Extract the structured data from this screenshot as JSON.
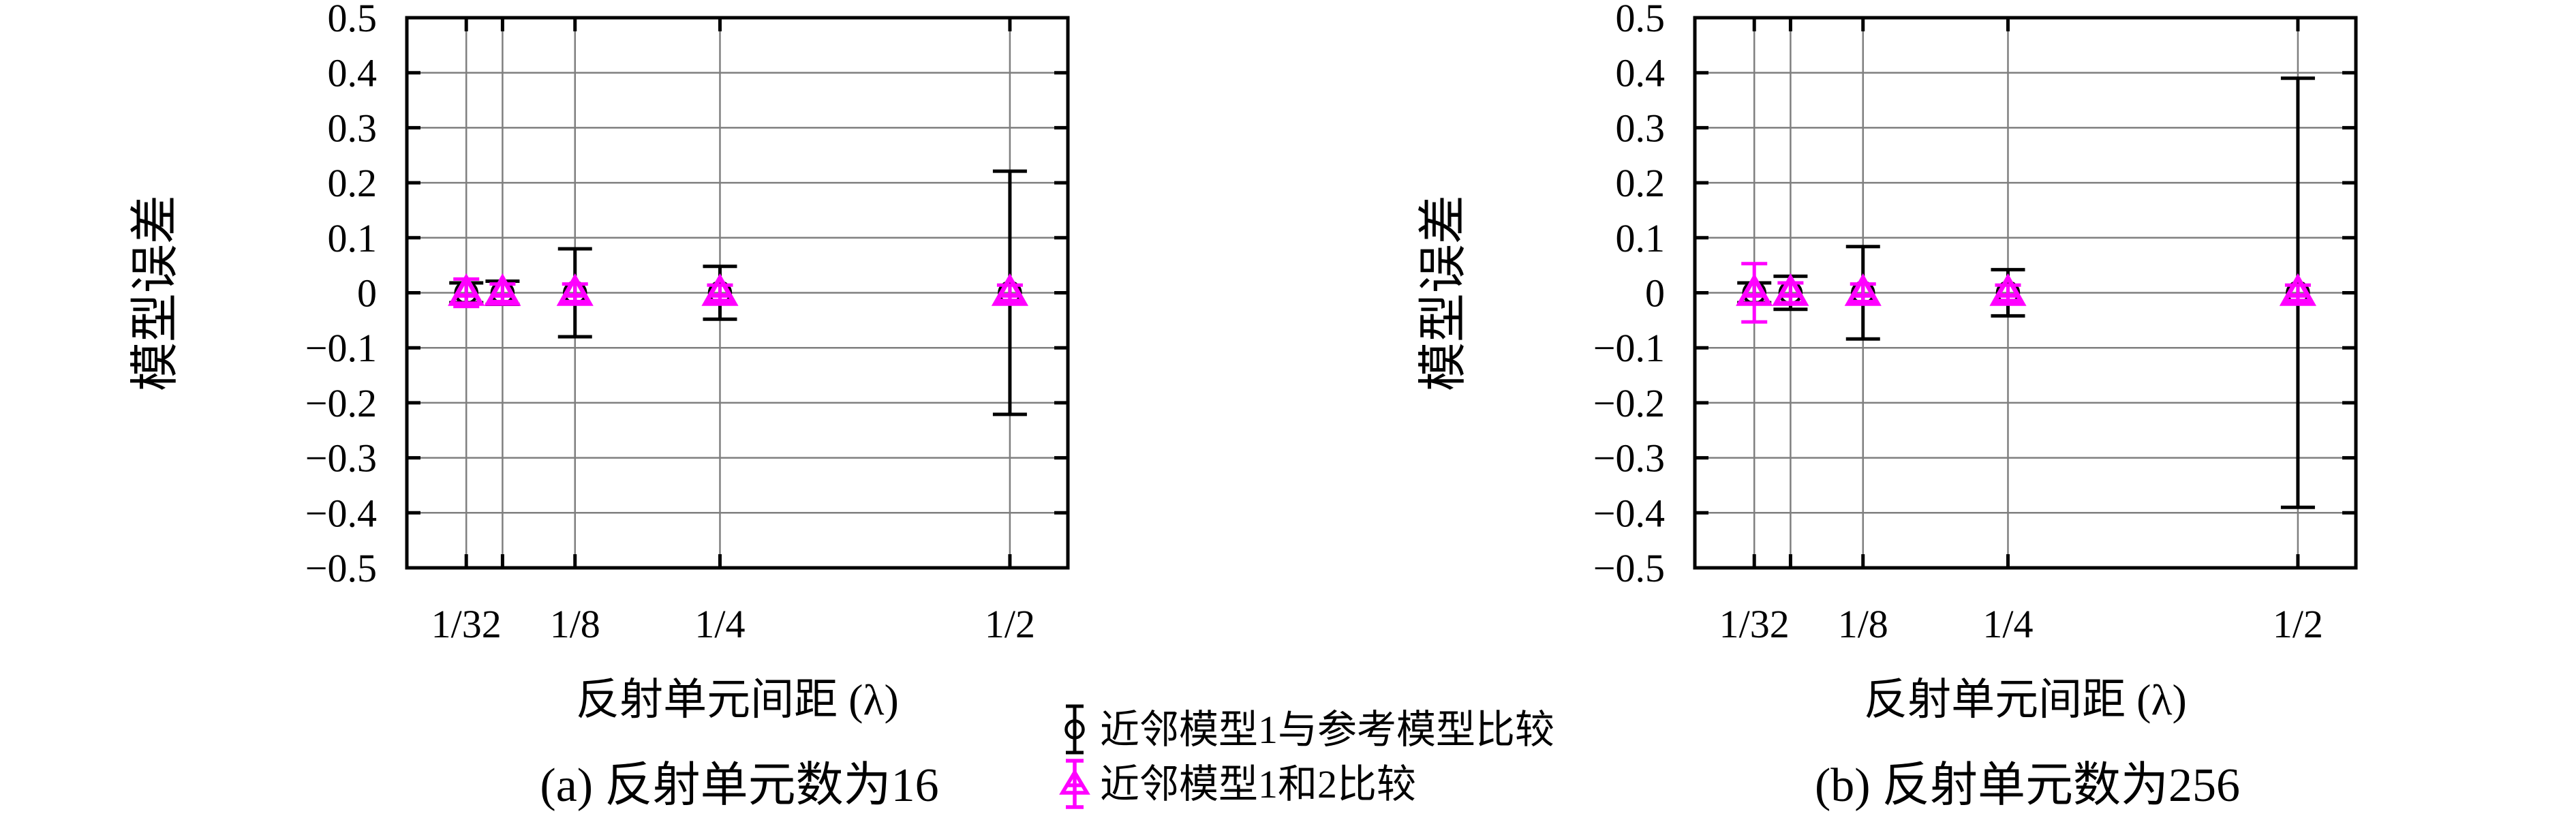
{
  "figure": {
    "background": "#ffffff",
    "grid_color": "#7f7f7f",
    "border_color": "#000000",
    "legend": {
      "position": "bottom-center",
      "items": [
        {
          "label": "近邻模型1与参考模型比较",
          "icon": "errorbar-circle-icon",
          "marker": "circle",
          "color": "#000000"
        },
        {
          "label": "近邻模型1和2比较",
          "icon": "errorbar-triangle-icon",
          "marker": "triangle",
          "color": "#ff00ff"
        }
      ]
    }
  },
  "chart_data": [
    {
      "type": "scatter",
      "caption": "(a) 反射单元数为16",
      "xlabel": "反射单元间距 (λ)",
      "ylabel": "模型误差",
      "grid": true,
      "xlim": [
        -0.02,
        0.55
      ],
      "ylim": [
        -0.5,
        0.5
      ],
      "x": [
        0.03125,
        0.0625,
        0.125,
        0.25,
        0.5
      ],
      "xticks": [
        {
          "value": 0.03125,
          "label": "1/32"
        },
        {
          "value": 0.0625,
          "label": ""
        },
        {
          "value": 0.125,
          "label": "1/8"
        },
        {
          "value": 0.25,
          "label": "1/4"
        },
        {
          "value": 0.5,
          "label": "1/2"
        }
      ],
      "yticks": [
        {
          "value": 0.5,
          "label": "0.5"
        },
        {
          "value": 0.4,
          "label": "0.4"
        },
        {
          "value": 0.3,
          "label": "0.3"
        },
        {
          "value": 0.2,
          "label": "0.2"
        },
        {
          "value": 0.1,
          "label": "0.1"
        },
        {
          "value": 0,
          "label": "0"
        },
        {
          "value": -0.1,
          "label": "−0.1"
        },
        {
          "value": -0.2,
          "label": "−0.2"
        },
        {
          "value": -0.3,
          "label": "−0.3"
        },
        {
          "value": -0.4,
          "label": "−0.4"
        },
        {
          "value": -0.5,
          "label": "−0.5"
        }
      ],
      "series": [
        {
          "name": "近邻模型1与参考模型比较",
          "marker": "circle",
          "color": "#000000",
          "y": [
            0,
            0,
            0,
            0,
            0
          ],
          "yerr": [
            0.018,
            0.021,
            0.08,
            0.048,
            0.221
          ]
        },
        {
          "name": "近邻模型1和2比较",
          "marker": "triangle",
          "color": "#ff00ff",
          "y": [
            0,
            0,
            0,
            0,
            0
          ],
          "yerr": [
            0.025,
            0.016,
            0.016,
            0.014,
            0.014
          ]
        }
      ]
    },
    {
      "type": "scatter",
      "caption": "(b) 反射单元数为256",
      "xlabel": "反射单元间距 (λ)",
      "ylabel": "模型误差",
      "grid": true,
      "xlim": [
        -0.02,
        0.55
      ],
      "ylim": [
        -0.5,
        0.5
      ],
      "x": [
        0.03125,
        0.0625,
        0.125,
        0.25,
        0.5
      ],
      "xticks": [
        {
          "value": 0.03125,
          "label": "1/32"
        },
        {
          "value": 0.0625,
          "label": ""
        },
        {
          "value": 0.125,
          "label": "1/8"
        },
        {
          "value": 0.25,
          "label": "1/4"
        },
        {
          "value": 0.5,
          "label": "1/2"
        }
      ],
      "yticks": [
        {
          "value": 0.5,
          "label": "0.5"
        },
        {
          "value": 0.4,
          "label": "0.4"
        },
        {
          "value": 0.3,
          "label": "0.3"
        },
        {
          "value": 0.2,
          "label": "0.2"
        },
        {
          "value": 0.1,
          "label": "0.1"
        },
        {
          "value": 0,
          "label": "0"
        },
        {
          "value": -0.1,
          "label": "−0.1"
        },
        {
          "value": -0.2,
          "label": "−0.2"
        },
        {
          "value": -0.3,
          "label": "−0.3"
        },
        {
          "value": -0.4,
          "label": "−0.4"
        },
        {
          "value": -0.5,
          "label": "−0.5"
        }
      ],
      "series": [
        {
          "name": "近邻模型1与参考模型比较",
          "marker": "circle",
          "color": "#000000",
          "y": [
            0,
            0,
            0,
            0,
            0
          ],
          "yerr": [
            0.018,
            0.03,
            0.084,
            0.042,
            0.39
          ]
        },
        {
          "name": "近邻模型1和2比较",
          "marker": "triangle",
          "color": "#ff00ff",
          "y": [
            0,
            0,
            0,
            0,
            0
          ],
          "yerr": [
            0.053,
            0.018,
            0.016,
            0.014,
            0.014
          ]
        }
      ]
    }
  ]
}
